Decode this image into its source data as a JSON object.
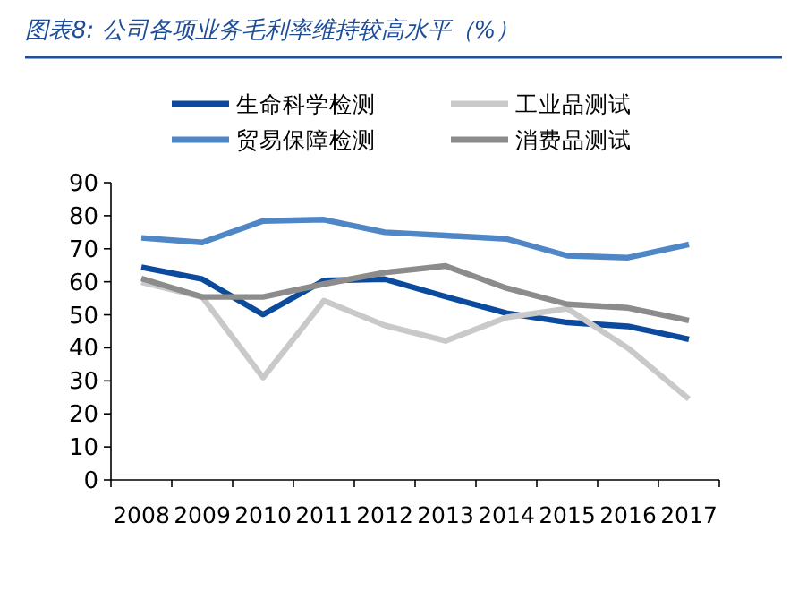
{
  "chart_data": {
    "type": "line",
    "title": "图表8: 公司各项业务毛利率维持较高水平（%）",
    "categories": [
      "2008",
      "2009",
      "2010",
      "2011",
      "2012",
      "2013",
      "2014",
      "2015",
      "2016",
      "2017"
    ],
    "series": [
      {
        "name": "生命科学检测",
        "color": "#0b4a9c",
        "values": [
          64.4,
          60.8,
          50.1,
          60.4,
          60.8,
          55.5,
          50.5,
          47.7,
          46.5,
          42.6
        ]
      },
      {
        "name": "工业品测试",
        "color": "#c9c9c9",
        "values": [
          59.9,
          55.4,
          31.0,
          54.3,
          46.8,
          42.1,
          49.2,
          51.9,
          39.9,
          24.5
        ]
      },
      {
        "name": "贸易保障检测",
        "color": "#4f86c6",
        "values": [
          73.3,
          71.9,
          78.4,
          78.8,
          75.0,
          74.0,
          73.0,
          67.9,
          67.3,
          71.3
        ]
      },
      {
        "name": "消费品测试",
        "color": "#8c8c8c",
        "values": [
          61.0,
          55.4,
          55.4,
          59.3,
          62.8,
          64.8,
          58.1,
          53.2,
          52.1,
          48.3
        ]
      }
    ],
    "ylim": [
      0,
      90
    ],
    "yticks": [
      0,
      10,
      20,
      30,
      40,
      50,
      60,
      70,
      80,
      90
    ],
    "legend": "top",
    "grid": false
  }
}
